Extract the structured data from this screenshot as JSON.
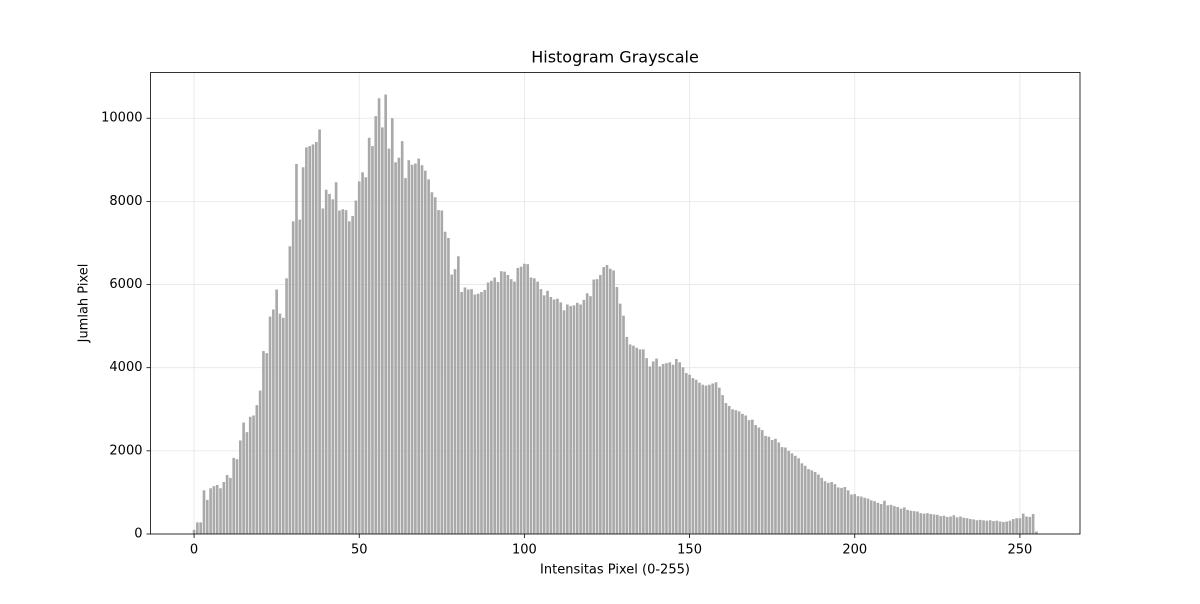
{
  "chart_data": {
    "type": "bar",
    "title": "Histogram Grayscale",
    "xlabel": "Intensitas Pixel (0-255)",
    "ylabel": "Jumlah Pixel",
    "x": [
      0,
      1,
      2,
      3,
      4,
      5,
      6,
      7,
      8,
      9,
      10,
      11,
      12,
      13,
      14,
      15,
      16,
      17,
      18,
      19,
      20,
      21,
      22,
      23,
      24,
      25,
      26,
      27,
      28,
      29,
      30,
      31,
      32,
      33,
      34,
      35,
      36,
      37,
      38,
      39,
      40,
      41,
      42,
      43,
      44,
      45,
      46,
      47,
      48,
      49,
      50,
      51,
      52,
      53,
      54,
      55,
      56,
      57,
      58,
      59,
      60,
      61,
      62,
      63,
      64,
      65,
      66,
      67,
      68,
      69,
      70,
      71,
      72,
      73,
      74,
      75,
      76,
      77,
      78,
      79,
      80,
      81,
      82,
      83,
      84,
      85,
      86,
      87,
      88,
      89,
      90,
      91,
      92,
      93,
      94,
      95,
      96,
      97,
      98,
      99,
      100,
      101,
      102,
      103,
      104,
      105,
      106,
      107,
      108,
      109,
      110,
      111,
      112,
      113,
      114,
      115,
      116,
      117,
      118,
      119,
      120,
      121,
      122,
      123,
      124,
      125,
      126,
      127,
      128,
      129,
      130,
      131,
      132,
      133,
      134,
      135,
      136,
      137,
      138,
      139,
      140,
      141,
      142,
      143,
      144,
      145,
      146,
      147,
      148,
      149,
      150,
      151,
      152,
      153,
      154,
      155,
      156,
      157,
      158,
      159,
      160,
      161,
      162,
      163,
      164,
      165,
      166,
      167,
      168,
      169,
      170,
      171,
      172,
      173,
      174,
      175,
      176,
      177,
      178,
      179,
      180,
      181,
      182,
      183,
      184,
      185,
      186,
      187,
      188,
      189,
      190,
      191,
      192,
      193,
      194,
      195,
      196,
      197,
      198,
      199,
      200,
      201,
      202,
      203,
      204,
      205,
      206,
      207,
      208,
      209,
      210,
      211,
      212,
      213,
      214,
      215,
      216,
      217,
      218,
      219,
      220,
      221,
      222,
      223,
      224,
      225,
      226,
      227,
      228,
      229,
      230,
      231,
      232,
      233,
      234,
      235,
      236,
      237,
      238,
      239,
      240,
      241,
      242,
      243,
      244,
      245,
      246,
      247,
      248,
      249,
      250,
      251,
      252,
      253,
      254,
      255
    ],
    "values": [
      100,
      280,
      280,
      1050,
      820,
      1100,
      1150,
      1180,
      1100,
      1250,
      1420,
      1350,
      1830,
      1800,
      2250,
      2680,
      2450,
      2820,
      2850,
      3100,
      3450,
      4400,
      4350,
      5230,
      5400,
      5880,
      5300,
      5200,
      6150,
      6920,
      7520,
      8900,
      7560,
      8820,
      9300,
      9330,
      9370,
      9430,
      9730,
      7830,
      8280,
      8180,
      8050,
      8460,
      7780,
      7810,
      7790,
      7520,
      7650,
      8020,
      8480,
      8700,
      8580,
      9530,
      9330,
      10050,
      10480,
      9780,
      10570,
      9270,
      10000,
      8940,
      9050,
      9450,
      8560,
      8990,
      8880,
      8910,
      9030,
      8870,
      8740,
      8530,
      8220,
      8100,
      7790,
      7780,
      7270,
      7120,
      6240,
      6370,
      6680,
      5820,
      5930,
      5880,
      5890,
      5760,
      5780,
      5820,
      5870,
      6050,
      6090,
      6170,
      6060,
      6320,
      6310,
      6230,
      6130,
      6070,
      6400,
      6430,
      6500,
      6490,
      6170,
      6150,
      6070,
      5890,
      5740,
      5850,
      5700,
      5640,
      5660,
      5570,
      5380,
      5520,
      5480,
      5500,
      5560,
      5520,
      5630,
      5790,
      5720,
      6120,
      6130,
      6230,
      6420,
      6470,
      6380,
      6340,
      5940,
      5540,
      5250,
      4740,
      4560,
      4530,
      4480,
      4440,
      4440,
      4230,
      4030,
      4150,
      4220,
      4030,
      4090,
      4110,
      4130,
      4070,
      4210,
      4130,
      4010,
      3870,
      3830,
      3750,
      3710,
      3640,
      3590,
      3570,
      3590,
      3620,
      3650,
      3520,
      3340,
      3150,
      3080,
      3000,
      2980,
      2950,
      2890,
      2850,
      2740,
      2750,
      2620,
      2560,
      2500,
      2360,
      2340,
      2260,
      2290,
      2200,
      2090,
      2080,
      2000,
      1940,
      1880,
      1820,
      1700,
      1640,
      1560,
      1530,
      1490,
      1430,
      1350,
      1270,
      1230,
      1250,
      1200,
      1120,
      1110,
      1130,
      1050,
      950,
      960,
      910,
      900,
      870,
      850,
      810,
      790,
      750,
      720,
      800,
      690,
      700,
      670,
      650,
      610,
      640,
      580,
      560,
      550,
      540,
      500,
      490,
      500,
      480,
      470,
      460,
      430,
      440,
      410,
      420,
      450,
      400,
      420,
      390,
      380,
      360,
      350,
      330,
      340,
      330,
      320,
      330,
      310,
      320,
      300,
      290,
      300,
      320,
      360,
      380,
      380,
      490,
      420,
      410,
      480,
      60
    ],
    "color": "#a9a9a9",
    "bar_width": 0.8,
    "xlim": [
      -13.19,
      268.19
    ],
    "xticks": [
      0,
      50,
      100,
      150,
      200,
      250
    ],
    "ylim": [
      0,
      11100
    ],
    "yticks": [
      0,
      2000,
      4000,
      6000,
      8000,
      10000
    ],
    "grid": true
  }
}
